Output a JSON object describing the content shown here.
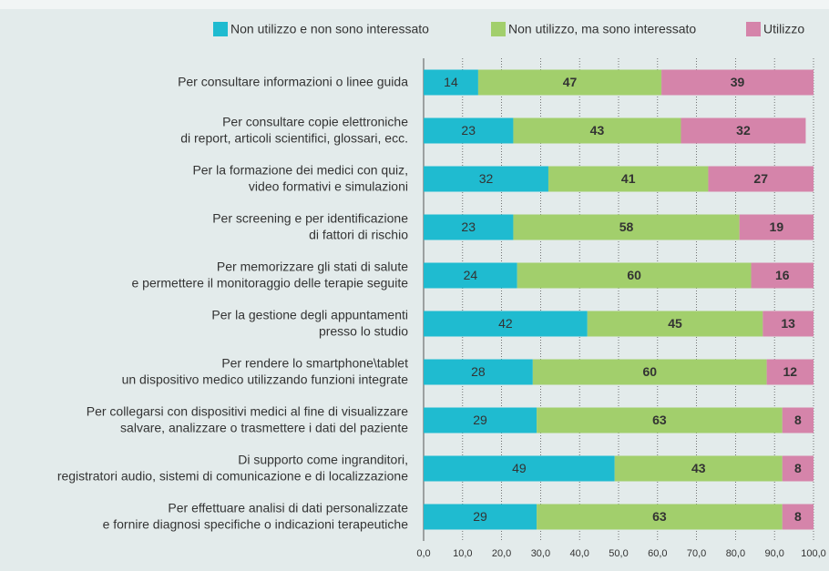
{
  "chart_data": {
    "type": "stacked-bar-horizontal",
    "categories": [
      "Per consultare informazioni o linee guida",
      "Per consultare copie elettroniche\ndi report, articoli scientifici, glossari, ecc.",
      "Per la formazione dei medici con quiz,\nvideo formativi e simulazioni",
      "Per screening e per identificazione\ndi fattori di rischio",
      "Per memorizzare gli stati di salute\ne permettere il monitoraggio delle terapie seguite",
      "Per la gestione degli appuntamenti\npresso lo studio",
      "Per rendere lo smartphone\\tablet\nun dispositivo medico utilizzando funzioni integrate",
      "Per collegarsi con dispositivi medici al fine di visualizzare\nsalvare, analizzare o trasmettere i dati del paziente",
      "Di supporto come ingranditori,\nregistratori audio, sistemi di comunicazione e di localizzazione",
      "Per effettuare analisi di dati personalizzate\ne fornire diagnosi specifiche o indicazioni terapeutiche"
    ],
    "series": [
      {
        "name": "Non utilizzo e non sono interessato",
        "color": "#1fbbd0",
        "values": [
          14,
          23,
          32,
          23,
          24,
          42,
          28,
          29,
          49,
          29
        ]
      },
      {
        "name": "Non utilizzo, ma sono interessato",
        "color": "#a2cf6c",
        "values": [
          47,
          43,
          41,
          58,
          60,
          45,
          60,
          63,
          43,
          63
        ]
      },
      {
        "name": "Utilizzo",
        "color": "#d584aa",
        "values": [
          39,
          32,
          27,
          19,
          16,
          13,
          12,
          8,
          8,
          8
        ]
      }
    ],
    "xlim": [
      0,
      100
    ],
    "xticks": [
      {
        "value": 0,
        "label": "0,0"
      },
      {
        "value": 10,
        "label": "10,0"
      },
      {
        "value": 20,
        "label": "20,0"
      },
      {
        "value": 30,
        "label": "30,0"
      },
      {
        "value": 40,
        "label": "40,0"
      },
      {
        "value": 50,
        "label": "50,0"
      },
      {
        "value": 60,
        "label": "60,0"
      },
      {
        "value": 70,
        "label": "70,0"
      },
      {
        "value": 80,
        "label": "80,0"
      },
      {
        "value": 90,
        "label": "90,0"
      },
      {
        "value": 100,
        "label": "100,0"
      }
    ],
    "grid": true,
    "legend": "top"
  }
}
